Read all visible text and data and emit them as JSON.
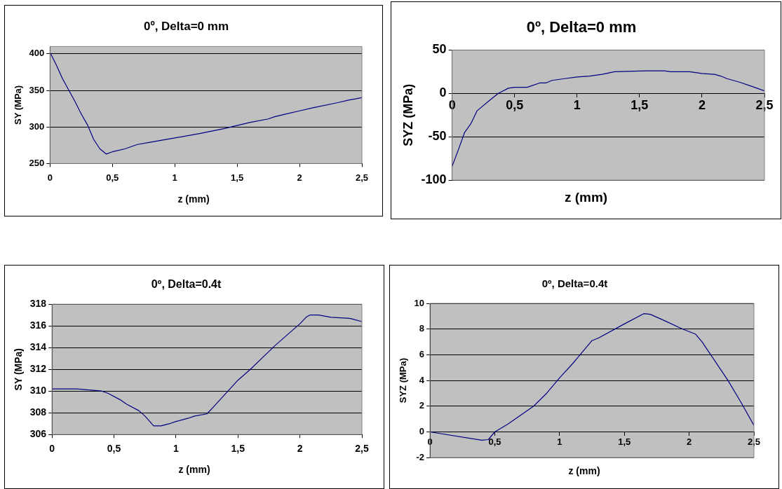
{
  "chart_data": [
    {
      "type": "line",
      "title": "0º, Delta=0 mm",
      "xlabel": "z (mm)",
      "ylabel": "SY (MPa)",
      "marker": "none",
      "grid": "y",
      "legend": false,
      "xlim": [
        0,
        2.5
      ],
      "xticks": [
        0,
        {
          "value": 0.5,
          "label": "0,5"
        },
        1,
        {
          "value": 1.5,
          "label": "1,5"
        },
        2,
        {
          "value": 2.5,
          "label": "2,5"
        }
      ],
      "ylim": [
        250,
        410
      ],
      "yticks": [
        250,
        300,
        350,
        400
      ],
      "series": [
        {
          "color": "#000080",
          "x": [
            0,
            0.05,
            0.1,
            0.2,
            0.25,
            0.3,
            0.35,
            0.4,
            0.45,
            0.5,
            0.6,
            0.7,
            0.8,
            1.0,
            1.2,
            1.4,
            1.5,
            1.6,
            1.75,
            1.8,
            1.9,
            2.0,
            2.1,
            2.3,
            2.4,
            2.5
          ],
          "values": [
            402,
            385,
            366,
            335,
            318,
            303,
            283,
            270,
            263,
            266,
            270,
            276,
            279,
            285,
            291,
            298,
            302,
            306,
            311,
            314,
            318,
            322,
            326,
            333,
            337,
            340
          ]
        }
      ]
    },
    {
      "type": "line",
      "title": "0º, Delta=0 mm",
      "xlabel": "z (mm)",
      "ylabel": "SYZ (MPa)",
      "marker": "none",
      "grid": "y",
      "legend": false,
      "xlim": [
        0,
        2.5
      ],
      "xticks": [
        0,
        {
          "value": 0.5,
          "label": "0,5"
        },
        1,
        {
          "value": 1.5,
          "label": "1,5"
        },
        2,
        {
          "value": 2.5,
          "label": "2,5"
        }
      ],
      "ylim": [
        -100,
        50
      ],
      "yticks": [
        -100,
        -50,
        0,
        50
      ],
      "series": [
        {
          "color": "#000080",
          "x": [
            0,
            0.05,
            0.1,
            0.15,
            0.2,
            0.3,
            0.37,
            0.45,
            0.5,
            0.6,
            0.7,
            0.75,
            0.8,
            0.9,
            1.0,
            1.1,
            1.2,
            1.3,
            1.55,
            1.7,
            1.75,
            1.9,
            2.0,
            2.1,
            2.15,
            2.2,
            2.3,
            2.4,
            2.5
          ],
          "values": [
            -84,
            -65,
            -45,
            -35,
            -20,
            -8,
            0,
            6,
            7,
            7,
            12,
            12,
            15,
            17,
            19,
            20,
            22,
            25,
            26,
            26,
            25,
            25,
            23,
            22,
            20,
            17,
            13,
            8,
            3
          ]
        }
      ]
    },
    {
      "type": "line",
      "title": "0º, Delta=0.4t",
      "xlabel": "z (mm)",
      "ylabel": "SY (MPa)",
      "marker": "none",
      "grid": "y",
      "legend": false,
      "xlim": [
        0,
        2.5
      ],
      "xticks": [
        0,
        {
          "value": 0.5,
          "label": "0,5"
        },
        1,
        {
          "value": 1.5,
          "label": "1,5"
        },
        2,
        {
          "value": 2.5,
          "label": "2,5"
        }
      ],
      "ylim": [
        306,
        318
      ],
      "yticks": [
        306,
        308,
        310,
        312,
        314,
        316,
        318
      ],
      "series": [
        {
          "color": "#000080",
          "x": [
            0,
            0.2,
            0.3,
            0.4,
            0.45,
            0.55,
            0.6,
            0.7,
            0.75,
            0.82,
            0.88,
            0.95,
            1.0,
            1.1,
            1.15,
            1.25,
            1.3,
            1.5,
            1.6,
            1.7,
            1.8,
            1.9,
            2.0,
            2.05,
            2.08,
            2.15,
            2.25,
            2.4,
            2.5
          ],
          "values": [
            310.2,
            310.2,
            310.1,
            310.0,
            309.8,
            309.2,
            308.8,
            308.2,
            307.7,
            306.8,
            306.8,
            307.0,
            307.2,
            307.5,
            307.7,
            307.9,
            308.5,
            311.0,
            312.0,
            313.1,
            314.2,
            315.2,
            316.2,
            316.8,
            317.0,
            317.0,
            316.8,
            316.7,
            316.4
          ]
        }
      ]
    },
    {
      "type": "line",
      "title": "0º, Delta=0.4t",
      "xlabel": "z (mm)",
      "ylabel": "SYZ (MPa)",
      "marker": "none",
      "grid": "y",
      "legend": false,
      "xlim": [
        0,
        2.5
      ],
      "xticks": [
        0,
        {
          "value": 0.5,
          "label": "0,5"
        },
        1,
        {
          "value": 1.5,
          "label": "1,5"
        },
        2,
        {
          "value": 2.5,
          "label": "2,5"
        }
      ],
      "ylim": [
        -2,
        10
      ],
      "yticks": [
        -2,
        0,
        2,
        4,
        6,
        8,
        10
      ],
      "series": [
        {
          "color": "#000080",
          "x": [
            0,
            0.4,
            0.45,
            0.5,
            0.6,
            0.8,
            0.9,
            1.0,
            1.1,
            1.25,
            1.3,
            1.5,
            1.65,
            1.7,
            1.8,
            1.95,
            2.05,
            2.1,
            2.2,
            2.3,
            2.4,
            2.5
          ],
          "values": [
            0,
            -0.65,
            -0.6,
            0,
            0.6,
            2.0,
            3.0,
            4.2,
            5.3,
            7.1,
            7.3,
            8.4,
            9.2,
            9.15,
            8.7,
            8.0,
            7.6,
            7.0,
            5.5,
            4.0,
            2.3,
            0.5
          ]
        }
      ]
    }
  ]
}
